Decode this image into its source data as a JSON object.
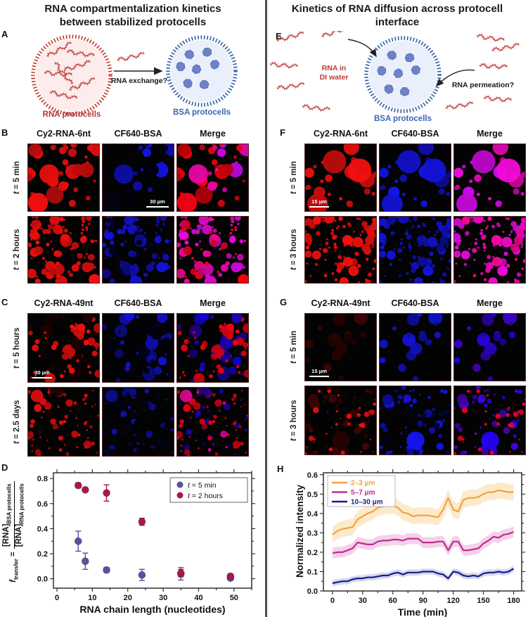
{
  "titles": {
    "left_line1": "RNA compartmentalization kinetics",
    "left_line2": "between stabilized protocells",
    "right_line1": "Kinetics of RNA diffusion across protocell",
    "right_line2": "interface"
  },
  "colors": {
    "rna_red": "#c0392b",
    "bsa_blue": "#2e5fa3",
    "rna_label_red": "#b03a3a",
    "bsa_label_blue": "#3a66b0",
    "point_purple": "#5b519e",
    "point_crimson": "#a8184e",
    "line_orange": "#f6a13b",
    "line_magenta": "#bf2d8e",
    "line_navy": "#1a1a8f"
  },
  "panels": {
    "A": {
      "label": "A",
      "rna_label": "RNA protocells",
      "bsa_label": "BSA protocells",
      "exchange_label": "RNA exchange?"
    },
    "B": {
      "label": "B",
      "headers": [
        "Cy2-RNA-6nt",
        "CF640-BSA",
        "Merge"
      ],
      "rows": [
        "t = 5 min",
        "t = 2 hours"
      ],
      "scalebar": "30 μm"
    },
    "C": {
      "label": "C",
      "headers": [
        "Cy2-RNA-49nt",
        "CF640-BSA",
        "Merge"
      ],
      "rows": [
        "t = 5 hours",
        "t = 2.5 days"
      ],
      "scalebar": "30 μm"
    },
    "D": {
      "label": "D",
      "ylabel_parts": {
        "f": "f",
        "sub": "transfer",
        "eq": "=",
        "num": "[RNA]",
        "num_sub": "BSA protocells",
        "den": "[RNA]",
        "den_sub": "RNA protocells"
      }
    },
    "E": {
      "label": "E",
      "water_line1": "RNA in",
      "water_line2": "DI water",
      "permeation_label": "RNA permeation?",
      "bsa_label": "BSA protocells"
    },
    "F": {
      "label": "F",
      "headers": [
        "Cy2-RNA-6nt",
        "CF640-BSA",
        "Merge"
      ],
      "rows": [
        "t = 5 min",
        "t = 3 hours"
      ],
      "scalebar": "15 μm"
    },
    "G": {
      "label": "G",
      "headers": [
        "Cy2-RNA-49nt",
        "CF640-BSA",
        "Merge"
      ],
      "rows": [
        "t = 5 min",
        "t = 3 hours"
      ],
      "scalebar": "15 μm"
    },
    "H": {
      "label": "H"
    }
  },
  "chart_data": [
    {
      "type": "scatter",
      "panel": "D",
      "xlabel": "RNA chain length (nucleotides)",
      "ylabel": "f transfer = [RNA] BSA protocells / [RNA] RNA protocells",
      "xlim": [
        -1,
        55
      ],
      "ylim": [
        -0.075,
        0.846
      ],
      "xticks": [
        0,
        10,
        20,
        30,
        40,
        50
      ],
      "xticklabels": [
        "0",
        "10",
        "20",
        "30",
        "40",
        "50"
      ],
      "yticks": [
        0.0,
        0.2,
        0.4,
        0.6,
        0.8
      ],
      "yticklabels": [
        "0.0",
        "0.2",
        "0.4",
        "0.6",
        "0.8"
      ],
      "xminor_step": 5,
      "yminor_step": 0.1,
      "legend_position": "top-right",
      "grid": false,
      "series": [
        {
          "name": "t = 5 min",
          "color": "#5b519e",
          "x": [
            6,
            8,
            14,
            24,
            35,
            49
          ],
          "y": [
            0.3,
            0.14,
            0.07,
            0.03,
            0.04,
            0.005
          ],
          "yerr": [
            0.08,
            0.065,
            0.02,
            0.045,
            0.05,
            0.012
          ]
        },
        {
          "name": "t = 2 hours",
          "color": "#a8184e",
          "x": [
            6,
            8,
            14,
            24,
            35,
            49
          ],
          "y": [
            0.745,
            0.71,
            0.685,
            0.455,
            0.045,
            0.02
          ],
          "yerr": [
            0.02,
            0.012,
            0.065,
            0.028,
            0.03,
            0.018
          ]
        }
      ]
    },
    {
      "type": "line",
      "panel": "H",
      "xlabel": "Time (min)",
      "ylabel": "Normalized intensity",
      "xlim": [
        -9,
        188
      ],
      "ylim": [
        0,
        0.61
      ],
      "xticks": [
        0,
        30,
        60,
        90,
        120,
        150,
        180
      ],
      "xticklabels": [
        "0",
        "30",
        "60",
        "90",
        "120",
        "150",
        "180"
      ],
      "yticks": [
        0.0,
        0.1,
        0.2,
        0.3,
        0.4,
        0.5,
        0.6
      ],
      "yticklabels": [
        "0.0",
        "0.1",
        "0.2",
        "0.3",
        "0.4",
        "0.5",
        "0.6"
      ],
      "xminor_step": 15,
      "yminor_step": 0.05,
      "legend_position": "top-left",
      "grid": false,
      "x_start": 0,
      "x_step": 5,
      "series": [
        {
          "name": "2–3 μm",
          "color": "#f6a13b",
          "band_color": "#f8c87a",
          "band": 0.042,
          "values": [
            0.29,
            0.31,
            0.32,
            0.325,
            0.33,
            0.37,
            0.385,
            0.4,
            0.41,
            0.43,
            0.435,
            0.44,
            0.44,
            0.43,
            0.405,
            0.4,
            0.385,
            0.39,
            0.39,
            0.39,
            0.385,
            0.38,
            0.42,
            0.48,
            0.42,
            0.41,
            0.47,
            0.48,
            0.48,
            0.485,
            0.5,
            0.51,
            0.51,
            0.52,
            0.515,
            0.51,
            0.51
          ]
        },
        {
          "name": "5–7 μm",
          "color": "#bf2d8e",
          "band_color": "#e387c4",
          "band": 0.028,
          "values": [
            0.195,
            0.2,
            0.2,
            0.21,
            0.22,
            0.25,
            0.245,
            0.24,
            0.24,
            0.255,
            0.26,
            0.26,
            0.265,
            0.265,
            0.26,
            0.27,
            0.27,
            0.27,
            0.25,
            0.25,
            0.25,
            0.255,
            0.255,
            0.21,
            0.255,
            0.255,
            0.21,
            0.21,
            0.215,
            0.22,
            0.245,
            0.26,
            0.28,
            0.275,
            0.29,
            0.295,
            0.305
          ]
        },
        {
          "name": "10–30 μm",
          "color": "#1a1a8f",
          "band_color": "#8f9bd8",
          "band": 0.016,
          "values": [
            0.04,
            0.045,
            0.05,
            0.05,
            0.06,
            0.065,
            0.065,
            0.07,
            0.07,
            0.075,
            0.08,
            0.08,
            0.09,
            0.095,
            0.085,
            0.095,
            0.095,
            0.095,
            0.1,
            0.1,
            0.1,
            0.09,
            0.085,
            0.065,
            0.1,
            0.095,
            0.08,
            0.075,
            0.08,
            0.075,
            0.09,
            0.095,
            0.095,
            0.1,
            0.095,
            0.1,
            0.115
          ]
        }
      ]
    }
  ]
}
